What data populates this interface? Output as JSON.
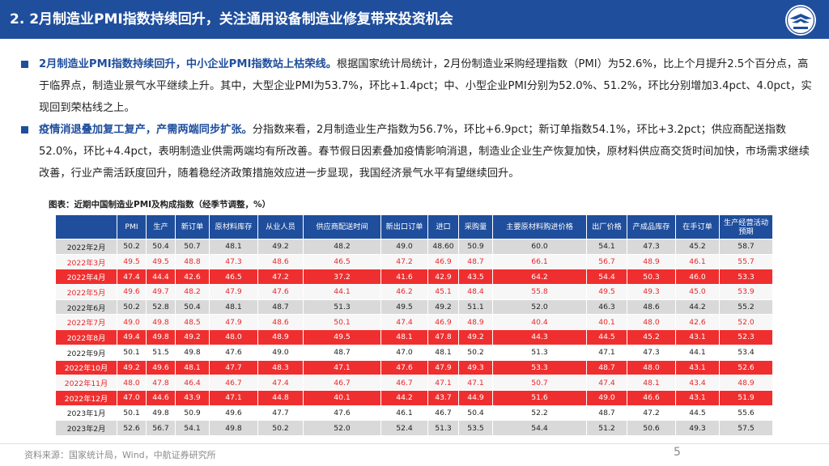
{
  "header": {
    "title": "2. 2月制造业PMI指数持续回升，关注通用设备制造业修复带来投资机会"
  },
  "paragraphs": [
    {
      "highlight": "2月制造业PMI指数持续回升，中小企业PMI指数站上枯荣线。",
      "text": "根据国家统计局统计，2月份制造业采购经理指数（PMI）为52.6%，比上个月提升2.5个百分点，高于临界点，制造业景气水平继续上升。其中，大型企业PMI为53.7%，环比+1.4pct；中、小型企业PMI分别为52.0%、51.2%，环比分别增加3.4pct、4.0pct，实现回到荣枯线之上。"
    },
    {
      "highlight": "疫情消退叠加复工复产，产需两端同步扩张。",
      "text": "分指数来看，2月制造业生产指数为56.7%，环比+6.9pct；新订单指数54.1%，环比+3.2pct；供应商配送指数52.0%，环比+4.4pct，表明制造业供需两端均有所改善。春节假日因素叠加疫情影响消退，制造业企业生产恢复加快，原材料供应商交货时间加快，市场需求继续改善，行业产需活跃度回升，随着稳经济政策措施效应进一步显现，我国经济景气水平有望继续回升。"
    }
  ],
  "table": {
    "caption": "图表：近期中国制造业PMI及构成指数（经季节调整，%）",
    "headers": [
      "",
      "PMI",
      "生产",
      "新订单",
      "原材料库存",
      "从业人员",
      "供应商配送时间",
      "新出口订单",
      "进口",
      "采购量",
      "主要原材料购进价格",
      "出厂价格",
      "产成品库存",
      "在手订单",
      "生产经营活动预期"
    ],
    "rows": [
      {
        "style": "gray",
        "cells": [
          "2022年2月",
          "50.2",
          "50.4",
          "50.7",
          "48.1",
          "49.2",
          "48.2",
          "49.0",
          "48.60",
          "50.9",
          "60.0",
          "54.1",
          "47.3",
          "45.2",
          "58.7"
        ]
      },
      {
        "style": "red",
        "cells": [
          "2022年3月",
          "49.5",
          "49.5",
          "48.8",
          "47.3",
          "48.6",
          "46.5",
          "47.2",
          "46.9",
          "48.7",
          "66.1",
          "56.7",
          "48.9",
          "46.1",
          "55.7"
        ]
      },
      {
        "style": "redfill",
        "cells": [
          "2022年4月",
          "47.4",
          "44.4",
          "42.6",
          "46.5",
          "47.2",
          "37.2",
          "41.6",
          "42.9",
          "43.5",
          "64.2",
          "54.4",
          "50.3",
          "46.0",
          "53.3"
        ]
      },
      {
        "style": "red",
        "cells": [
          "2022年5月",
          "49.6",
          "49.7",
          "48.2",
          "47.9",
          "47.6",
          "44.1",
          "46.2",
          "45.1",
          "48.4",
          "55.8",
          "49.5",
          "49.3",
          "45.0",
          "53.9"
        ]
      },
      {
        "style": "gray",
        "cells": [
          "2022年6月",
          "50.2",
          "52.8",
          "50.4",
          "48.1",
          "48.7",
          "51.3",
          "49.5",
          "49.2",
          "51.1",
          "52.0",
          "46.3",
          "48.6",
          "44.2",
          "55.2"
        ]
      },
      {
        "style": "red",
        "cells": [
          "2022年7月",
          "49.0",
          "49.8",
          "48.5",
          "47.9",
          "48.6",
          "50.1",
          "47.4",
          "46.9",
          "48.9",
          "40.4",
          "40.1",
          "48.0",
          "42.6",
          "52.0"
        ]
      },
      {
        "style": "redfill",
        "cells": [
          "2022年8月",
          "49.4",
          "49.8",
          "49.2",
          "48.0",
          "48.9",
          "49.5",
          "48.1",
          "47.8",
          "49.2",
          "44.3",
          "44.5",
          "45.2",
          "43.1",
          "52.3"
        ]
      },
      {
        "style": "white",
        "cells": [
          "2022年9月",
          "50.1",
          "51.5",
          "49.8",
          "47.6",
          "49.0",
          "48.7",
          "47.0",
          "48.1",
          "50.2",
          "51.3",
          "47.1",
          "47.3",
          "44.1",
          "53.4"
        ]
      },
      {
        "style": "redfill",
        "cells": [
          "2022年10月",
          "49.2",
          "49.6",
          "48.1",
          "47.7",
          "48.3",
          "47.1",
          "47.6",
          "47.9",
          "49.3",
          "53.3",
          "48.7",
          "48.0",
          "43.1",
          "52.6"
        ]
      },
      {
        "style": "red",
        "cells": [
          "2022年11月",
          "48.0",
          "47.8",
          "46.4",
          "46.7",
          "47.4",
          "46.7",
          "46.7",
          "47.1",
          "47.1",
          "50.7",
          "47.4",
          "48.1",
          "43.4",
          "48.9"
        ]
      },
      {
        "style": "redfill",
        "cells": [
          "2022年12月",
          "47.0",
          "44.6",
          "43.9",
          "47.1",
          "44.8",
          "40.1",
          "44.2",
          "43.7",
          "44.9",
          "51.6",
          "49.0",
          "46.6",
          "43.1",
          "51.9"
        ]
      },
      {
        "style": "white",
        "cells": [
          "2023年1月",
          "50.1",
          "49.8",
          "50.9",
          "49.6",
          "47.7",
          "47.6",
          "46.1",
          "46.7",
          "50.4",
          "52.2",
          "48.7",
          "47.2",
          "44.5",
          "55.6"
        ]
      },
      {
        "style": "gray",
        "cells": [
          "2023年2月",
          "52.6",
          "56.7",
          "54.1",
          "49.8",
          "50.2",
          "52.0",
          "52.4",
          "51.3",
          "53.5",
          "54.4",
          "51.2",
          "50.6",
          "49.3",
          "57.5"
        ]
      }
    ]
  },
  "footer": {
    "source": "资料来源：国家统计局，Wind，中航证券研究所",
    "page_number": "5"
  },
  "colors": {
    "brand_blue": "#1f4e9c",
    "alert_red": "#ef2f2f"
  },
  "icons": {
    "logo": "avic-wing-logo"
  }
}
